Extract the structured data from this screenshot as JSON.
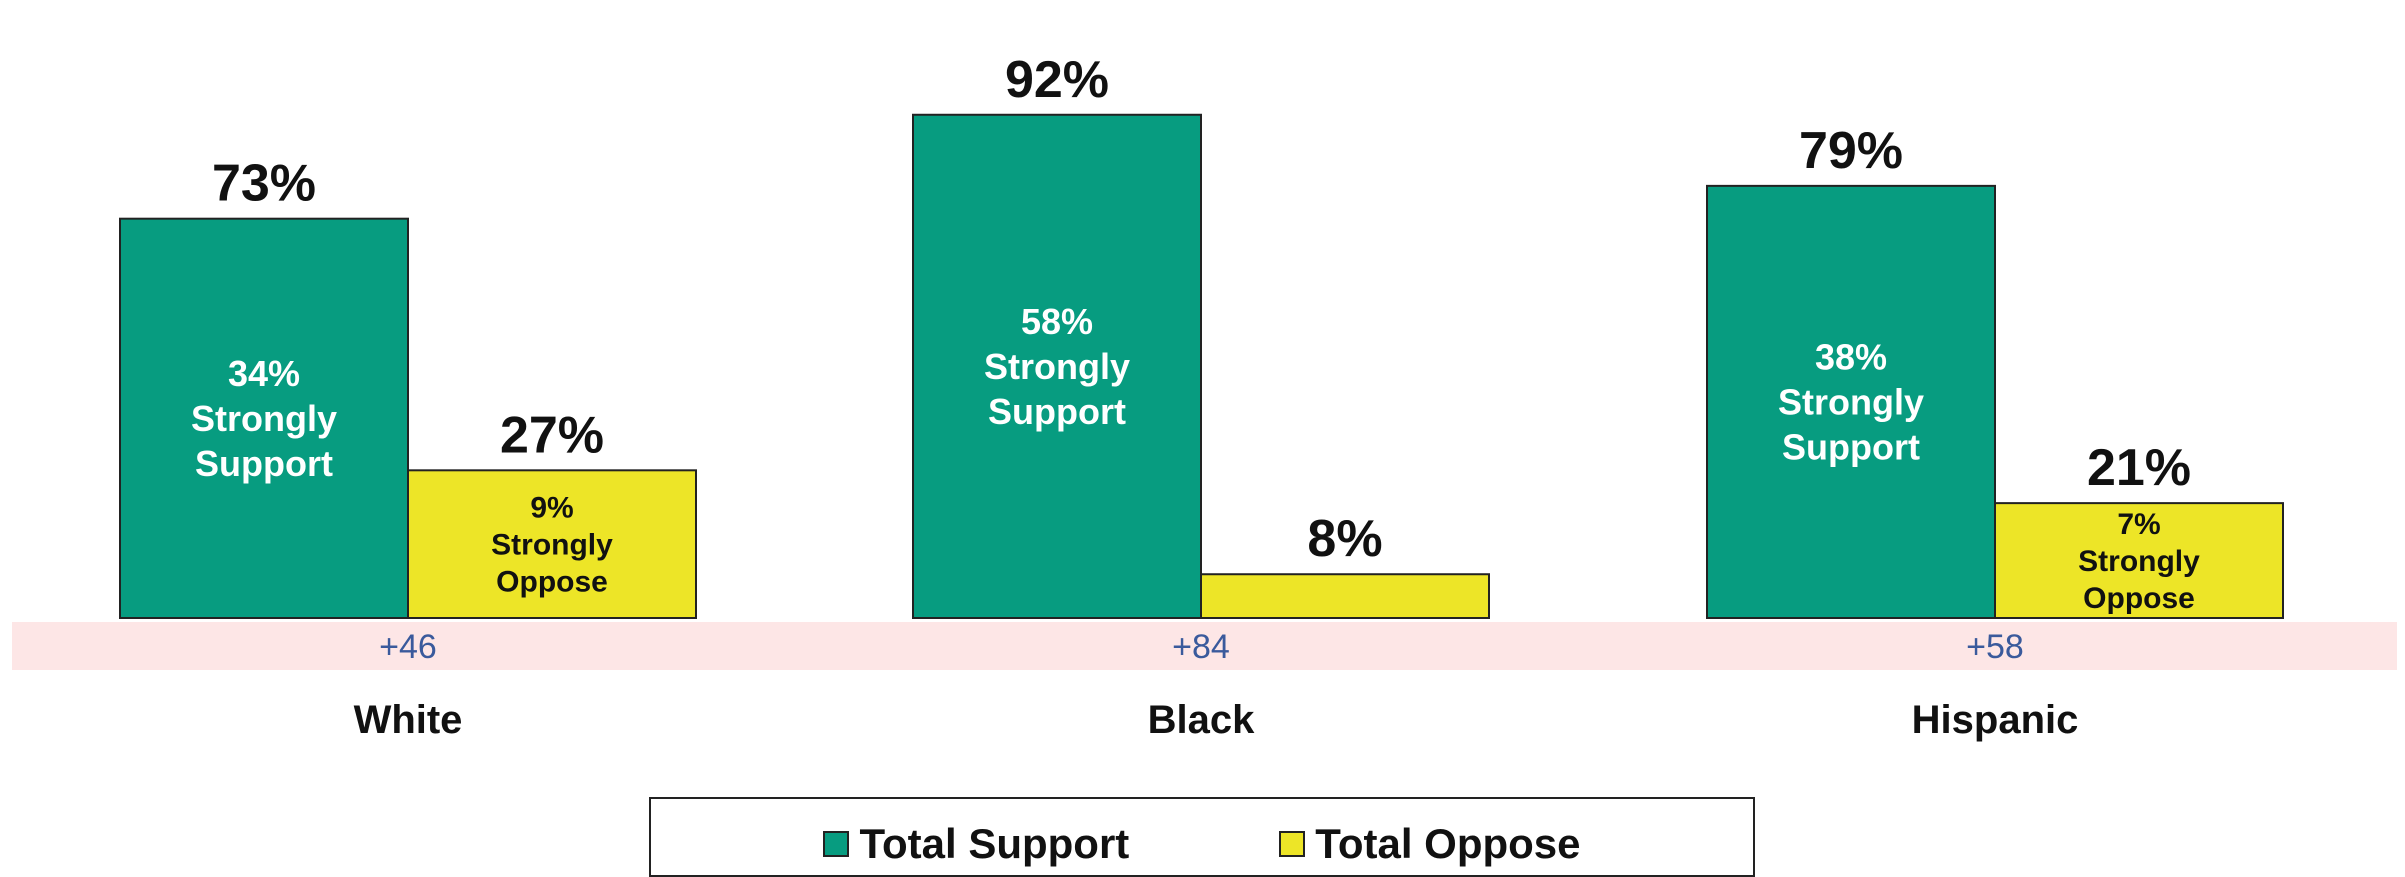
{
  "chart_data": {
    "type": "bar",
    "categories": [
      "White",
      "Black",
      "Hispanic"
    ],
    "series": [
      {
        "name": "Total Support",
        "color": "#079c80",
        "values": [
          73,
          92,
          79
        ],
        "inner_labels": [
          [
            "34%",
            "Strongly",
            "Support"
          ],
          [
            "58%",
            "Strongly",
            "Support"
          ],
          [
            "38%",
            "Strongly",
            "Support"
          ]
        ]
      },
      {
        "name": "Total Oppose",
        "color": "#ede527",
        "values": [
          27,
          8,
          21
        ],
        "inner_labels": [
          [
            "9%",
            "Strongly",
            "Oppose"
          ],
          [],
          [
            "7%",
            "Strongly",
            "Oppose"
          ]
        ]
      }
    ],
    "value_labels": [
      [
        "73%",
        "92%",
        "79%"
      ],
      [
        "27%",
        "8%",
        "21%"
      ]
    ],
    "net_labels": [
      "+46",
      "+84",
      "+58"
    ],
    "net_band_color": "#fde6e6",
    "ylim": [
      0,
      100
    ],
    "grid": false,
    "legend_position": "bottom"
  }
}
